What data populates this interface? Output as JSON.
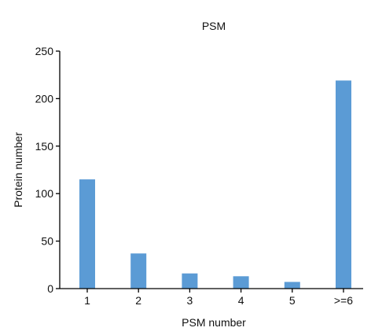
{
  "chart_data": {
    "type": "bar",
    "title": "PSM",
    "xlabel": "PSM number",
    "ylabel": "Protein number",
    "categories": [
      "1",
      "2",
      "3",
      "4",
      "5",
      ">=6"
    ],
    "values": [
      115,
      37,
      16,
      13,
      7,
      219
    ],
    "ylim": [
      0,
      250
    ],
    "yticks": [
      0,
      50,
      100,
      150,
      200,
      250
    ],
    "grid": false,
    "bar_color": "#5b9bd5",
    "axis_color": "#000000"
  }
}
